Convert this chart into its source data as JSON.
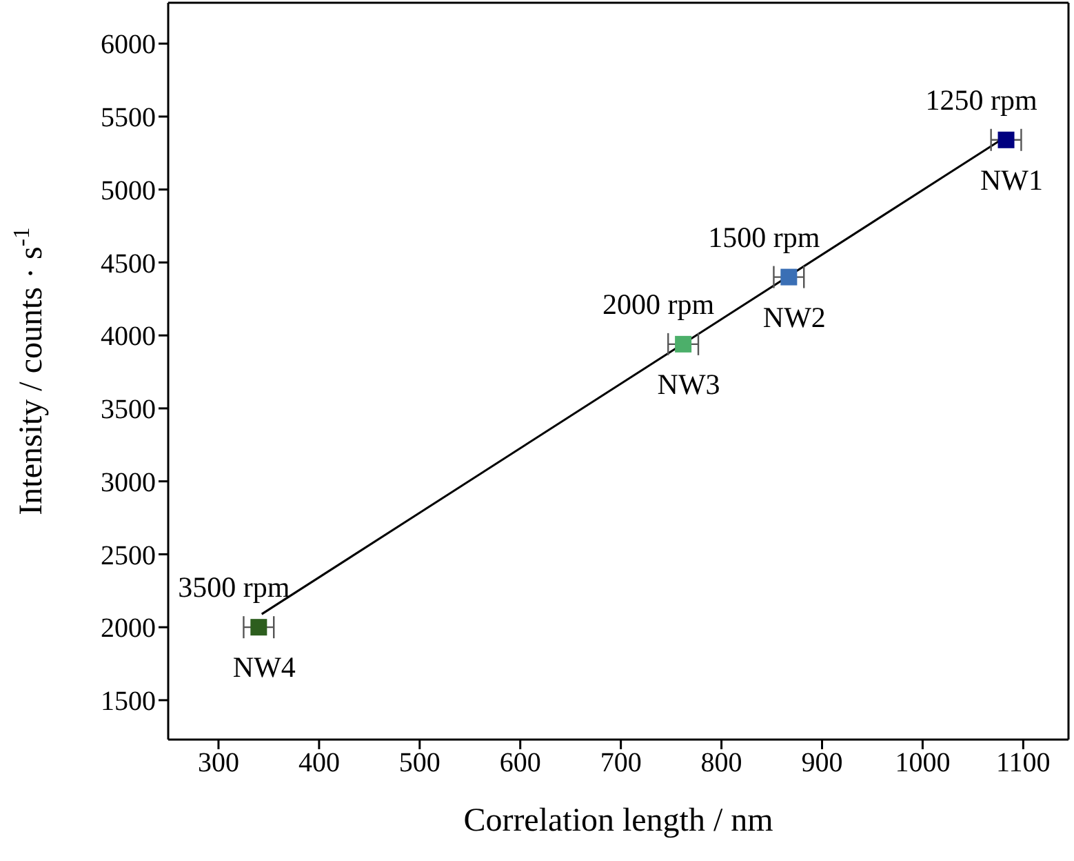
{
  "chart_data": {
    "type": "scatter",
    "xlabel": "Correlation length / nm",
    "ylabel": "Intensity / counts · s$^{-1}$",
    "xlim": [
      250,
      1145
    ],
    "xticks": [
      300,
      400,
      500,
      600,
      700,
      800,
      900,
      1000,
      1100
    ],
    "ylim": [
      1230,
      6280
    ],
    "yticks": [
      1500,
      2000,
      2500,
      3000,
      3500,
      4000,
      4500,
      5000,
      5500,
      6000
    ],
    "marker": "square",
    "series": [
      {
        "x": [
          1083,
          867,
          762,
          340
        ],
        "values": [
          5340,
          4400,
          3940,
          2000
        ],
        "xerrors": [
          15,
          15,
          15,
          15
        ],
        "colors": [
          "#000080",
          "#3a6fb5",
          "#4caf6a",
          "#2d5e1e"
        ]
      },
      {
        "type": "line",
        "x": [
          343,
          1080
        ],
        "values": [
          2090,
          5350
        ],
        "color": "#000000",
        "marker": "none",
        "line_style": "solid"
      }
    ],
    "annotations": [
      {
        "text": "1250 rpm",
        "x": 1083,
        "y": 5340
      },
      {
        "text": "1500 rpm",
        "x": 867,
        "y": 4400
      },
      {
        "text": "2000 rpm",
        "x": 762,
        "y": 3940
      },
      {
        "text": "3500 rpm",
        "x": 340,
        "y": 2000
      },
      {
        "text": "NW1",
        "x": 1083,
        "y": 5340
      },
      {
        "text": "NW2",
        "x": 867,
        "y": 4400
      },
      {
        "text": "NW3",
        "x": 762,
        "y": 3940
      },
      {
        "text": "NW4",
        "x": 340,
        "y": 2000
      }
    ]
  }
}
